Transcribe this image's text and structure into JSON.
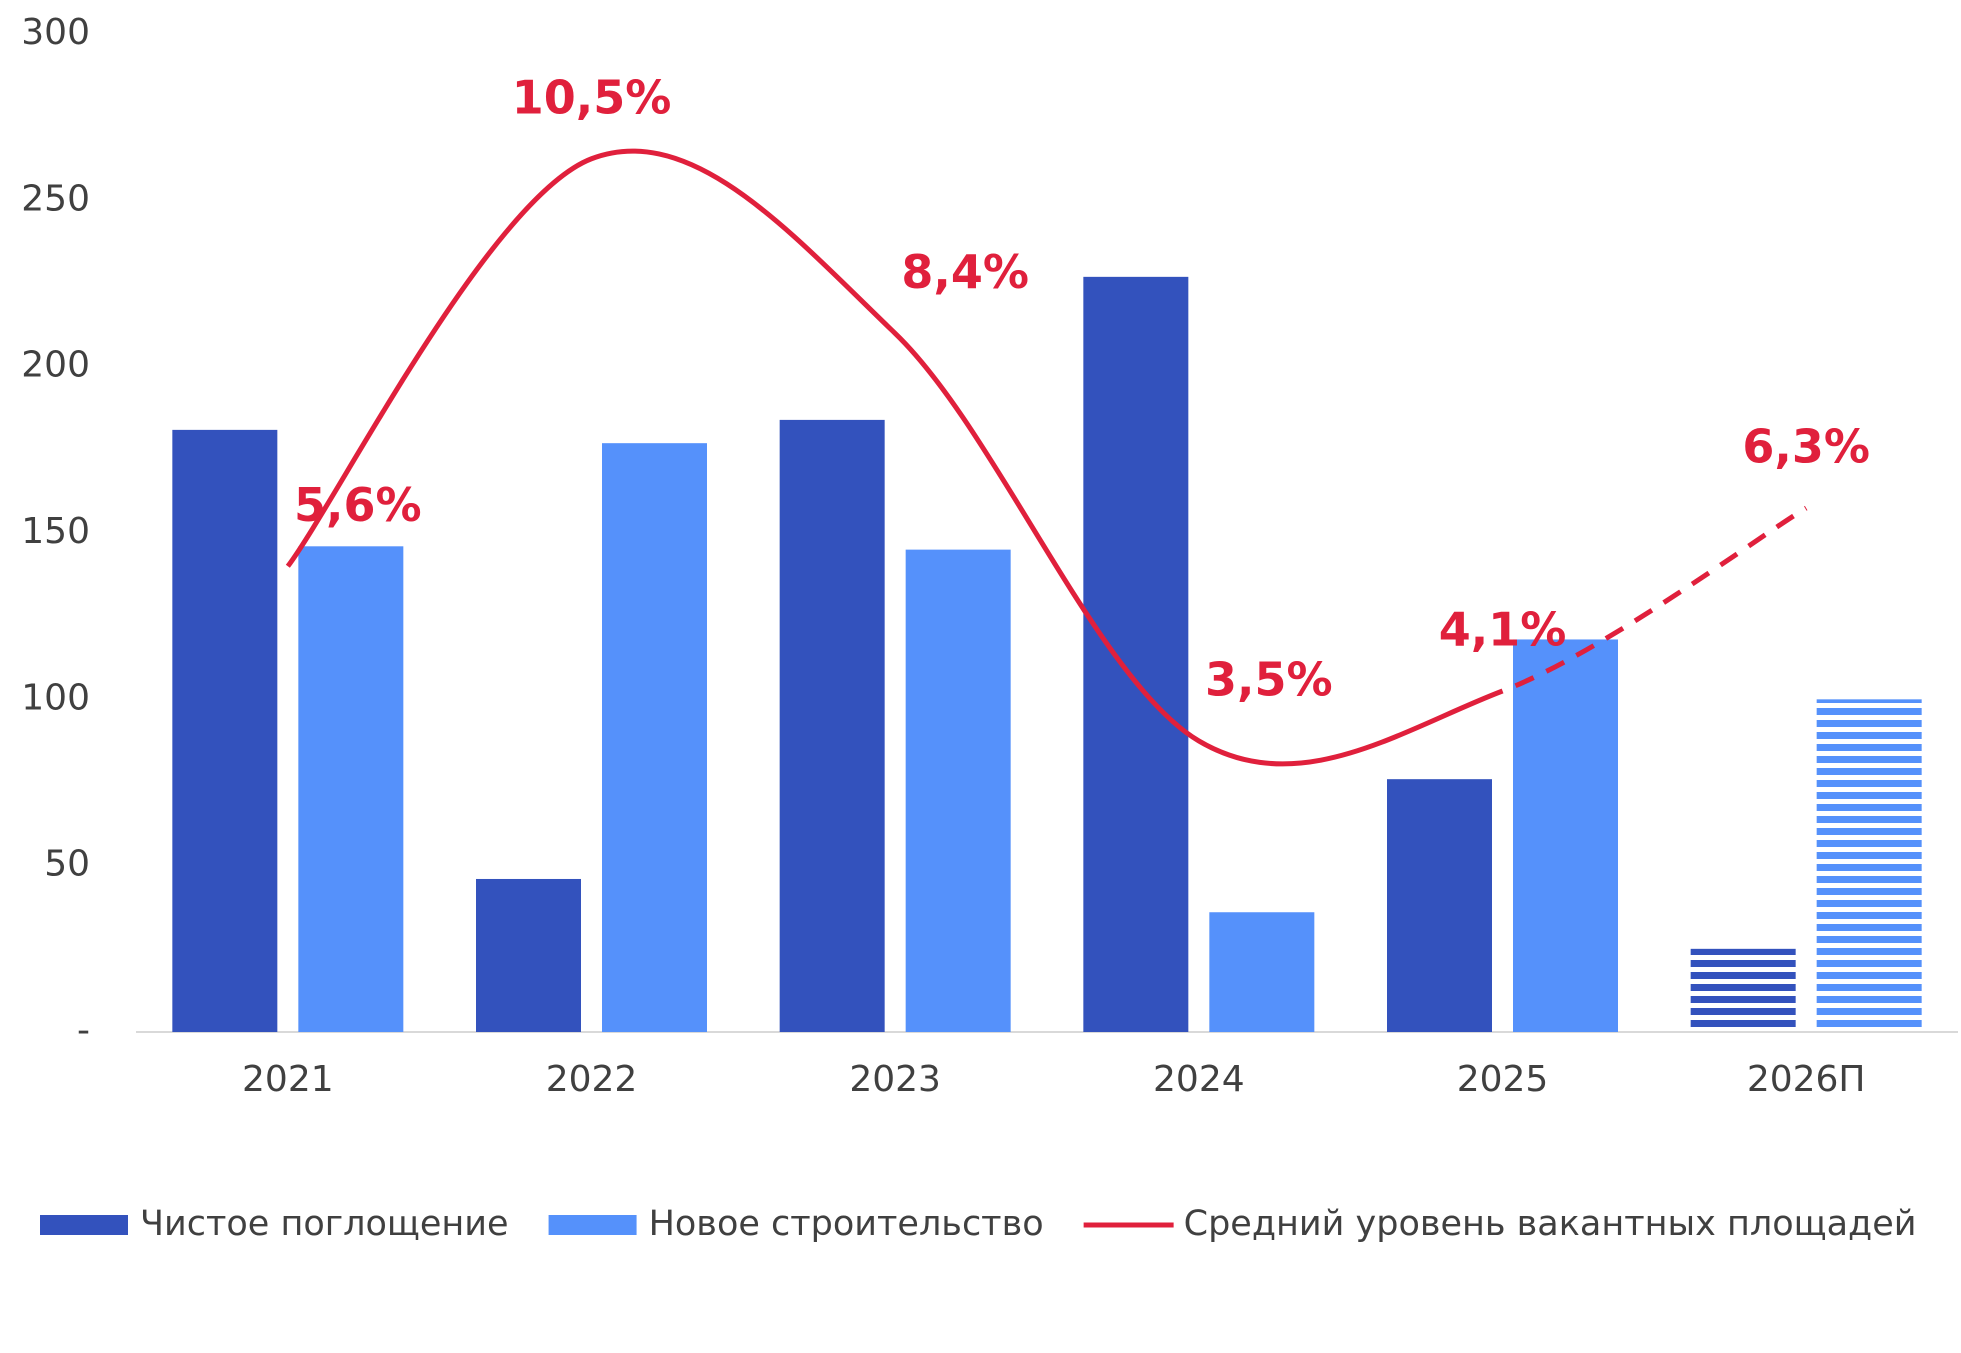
{
  "chart_data": {
    "type": "bar",
    "categories": [
      "2021",
      "2022",
      "2023",
      "2024",
      "2025",
      "2026П"
    ],
    "series": [
      {
        "name": "Чистое поглощение",
        "color": "#3352bd",
        "values": [
          181,
          46,
          184,
          227,
          76,
          25
        ]
      },
      {
        "name": "Новое строительство",
        "color": "#5591fb",
        "values": [
          146,
          177,
          145,
          36,
          118,
          100
        ]
      },
      {
        "name": "Средний уровень вакантных площадей",
        "type": "line",
        "axis": "y2",
        "color": "#e0203c",
        "values": [
          5.6,
          10.5,
          8.4,
          3.5,
          4.1,
          6.3
        ],
        "value_labels": [
          "5,6%",
          "10,5%",
          "8,4%",
          "3,5%",
          "4,1%",
          "6,3%"
        ]
      }
    ],
    "ylim": [
      0,
      300
    ],
    "yticks": [
      {
        "value": 0,
        "label": "-"
      },
      50,
      100,
      150,
      200,
      250,
      300
    ],
    "y2lim": [
      0,
      12
    ],
    "forecast_index": 5,
    "legend": "bottom"
  }
}
